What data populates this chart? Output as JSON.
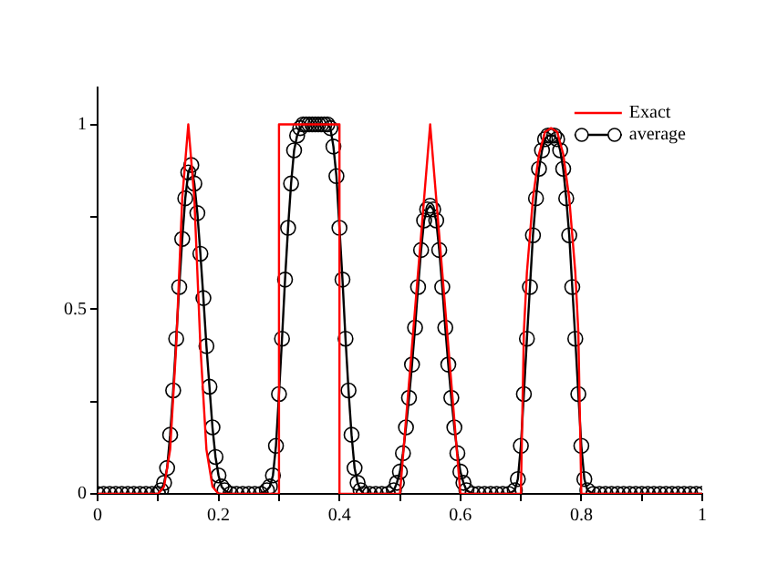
{
  "chart_data": {
    "type": "line",
    "xlim": [
      0,
      1
    ],
    "xticks": [
      0,
      {
        "value": 0.1,
        "label": null
      },
      0.2,
      {
        "value": 0.3,
        "label": null
      },
      0.4,
      {
        "value": 0.5,
        "label": null
      },
      0.6,
      {
        "value": 0.7,
        "label": null
      },
      0.8,
      {
        "value": 0.9,
        "label": null
      },
      1
    ],
    "ylim": [
      0,
      1.1
    ],
    "yticks": [
      0,
      {
        "value": 0.25,
        "label": null
      },
      0.5,
      {
        "value": 0.75,
        "label": null
      },
      1
    ],
    "grid": false,
    "legend": "top right",
    "series": [
      {
        "name": "Exact",
        "color": "#ff0000",
        "marker": "none",
        "line_style": "solid",
        "x": [
          0,
          0.1,
          0.11,
          0.12,
          0.13,
          0.14,
          0.15,
          0.16,
          0.17,
          0.18,
          0.19,
          0.2,
          0.3,
          0.3,
          0.4,
          0.4,
          0.5,
          0.55,
          0.6,
          0.7,
          0.705,
          0.71,
          0.72,
          0.73,
          0.74,
          0.75,
          0.76,
          0.77,
          0.78,
          0.79,
          0.795,
          0.8,
          1
        ],
        "values": [
          0,
          0,
          0.02,
          0.12,
          0.4,
          0.8,
          1,
          0.8,
          0.4,
          0.12,
          0.02,
          0,
          0,
          1,
          1,
          0,
          0,
          1,
          0,
          0,
          0.44,
          0.6,
          0.8,
          0.92,
          0.98,
          0.99,
          0.98,
          0.92,
          0.8,
          0.6,
          0.44,
          0,
          0
        ]
      },
      {
        "name": "average",
        "color": "#000000",
        "marker": "circle",
        "line_style": "solid",
        "x": [
          0,
          0.01,
          0.02,
          0.03,
          0.04,
          0.05,
          0.06,
          0.07,
          0.08,
          0.09,
          0.1,
          0.105,
          0.11,
          0.115,
          0.12,
          0.125,
          0.13,
          0.135,
          0.14,
          0.145,
          0.15,
          0.155,
          0.16,
          0.165,
          0.17,
          0.175,
          0.18,
          0.185,
          0.19,
          0.195,
          0.2,
          0.205,
          0.21,
          0.22,
          0.23,
          0.24,
          0.25,
          0.26,
          0.27,
          0.28,
          0.285,
          0.29,
          0.295,
          0.3,
          0.305,
          0.31,
          0.315,
          0.32,
          0.325,
          0.33,
          0.335,
          0.34,
          0.345,
          0.35,
          0.355,
          0.36,
          0.365,
          0.37,
          0.375,
          0.38,
          0.385,
          0.39,
          0.395,
          0.4,
          0.405,
          0.41,
          0.415,
          0.42,
          0.425,
          0.43,
          0.435,
          0.44,
          0.45,
          0.46,
          0.47,
          0.48,
          0.49,
          0.495,
          0.5,
          0.505,
          0.51,
          0.515,
          0.52,
          0.525,
          0.53,
          0.535,
          0.54,
          0.545,
          0.55,
          0.555,
          0.56,
          0.565,
          0.57,
          0.575,
          0.58,
          0.585,
          0.59,
          0.595,
          0.6,
          0.605,
          0.61,
          0.62,
          0.63,
          0.64,
          0.65,
          0.66,
          0.67,
          0.68,
          0.69,
          0.695,
          0.7,
          0.705,
          0.71,
          0.715,
          0.72,
          0.725,
          0.73,
          0.735,
          0.74,
          0.745,
          0.75,
          0.755,
          0.76,
          0.765,
          0.77,
          0.775,
          0.78,
          0.785,
          0.79,
          0.795,
          0.8,
          0.805,
          0.81,
          0.82,
          0.83,
          0.84,
          0.85,
          0.86,
          0.87,
          0.88,
          0.89,
          0.9,
          0.91,
          0.92,
          0.93,
          0.94,
          0.95,
          0.96,
          0.97,
          0.98,
          0.99,
          1
        ],
        "values": [
          0,
          0,
          0,
          0,
          0,
          0,
          0,
          0,
          0,
          0,
          0,
          0.01,
          0.03,
          0.07,
          0.16,
          0.28,
          0.42,
          0.56,
          0.69,
          0.8,
          0.87,
          0.89,
          0.84,
          0.76,
          0.65,
          0.53,
          0.4,
          0.29,
          0.18,
          0.1,
          0.05,
          0.02,
          0.01,
          0,
          0,
          0,
          0,
          0,
          0,
          0.01,
          0.02,
          0.05,
          0.13,
          0.27,
          0.42,
          0.58,
          0.72,
          0.84,
          0.93,
          0.97,
          0.99,
          1,
          1,
          1,
          1,
          1,
          1,
          1,
          1,
          1,
          0.99,
          0.94,
          0.86,
          0.72,
          0.58,
          0.42,
          0.28,
          0.16,
          0.07,
          0.03,
          0.01,
          0,
          0,
          0,
          0,
          0,
          0.01,
          0.03,
          0.06,
          0.11,
          0.18,
          0.26,
          0.35,
          0.45,
          0.56,
          0.66,
          0.74,
          0.77,
          0.78,
          0.77,
          0.74,
          0.66,
          0.56,
          0.45,
          0.35,
          0.26,
          0.18,
          0.11,
          0.06,
          0.03,
          0.01,
          0,
          0,
          0,
          0,
          0,
          0,
          0,
          0.01,
          0.04,
          0.13,
          0.27,
          0.42,
          0.56,
          0.7,
          0.8,
          0.88,
          0.93,
          0.96,
          0.97,
          0.97,
          0.97,
          0.96,
          0.93,
          0.88,
          0.8,
          0.7,
          0.56,
          0.42,
          0.27,
          0.13,
          0.04,
          0.01,
          0,
          0,
          0,
          0,
          0,
          0,
          0,
          0,
          0,
          0,
          0,
          0,
          0,
          0,
          0,
          0,
          0,
          0,
          0
        ]
      }
    ]
  }
}
